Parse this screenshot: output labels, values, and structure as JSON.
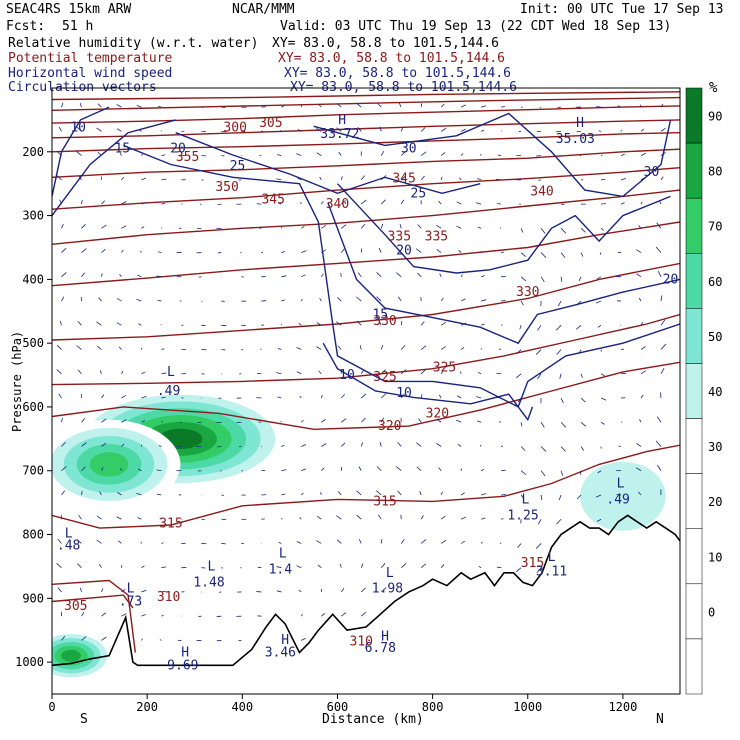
{
  "header": {
    "model": "SEAC4RS 15km ARW",
    "center": "NCAR/MMM",
    "init": "Init: 00 UTC Tue 17 Sep 13",
    "fcst_label": "Fcst:",
    "fcst_value": "51 h",
    "valid": "Valid: 03 UTC Thu 19 Sep 13 (22 CDT Wed 18 Sep 13)",
    "fields": [
      {
        "name": "Relative humidity (w.r.t. water)",
        "xy": "XY=  83.0, 58.8 to 101.5,144.6",
        "color": "#000000"
      },
      {
        "name": "Potential temperature",
        "xy": "XY=  83.0, 58.8 to 101.5,144.6",
        "color": "#8b1a1a"
      },
      {
        "name": "Horizontal wind speed",
        "xy": "XY=  83.0, 58.8 to 101.5,144.6",
        "color": "#1a237e"
      },
      {
        "name": "Circulation vectors",
        "xy": "XY=  83.0, 58.8 to 101.5,144.6",
        "color": "#1a237e"
      }
    ]
  },
  "colorbar": {
    "unit": "%",
    "levels": [
      0,
      10,
      20,
      30,
      40,
      50,
      60,
      70,
      80,
      90
    ],
    "colors": [
      "#ffffff",
      "#ffffff",
      "#ffffff",
      "#ffffff",
      "#bff2ec",
      "#80e6d4",
      "#4dd9a6",
      "#33cc66",
      "#1aa640",
      "#0a7a28"
    ]
  },
  "colors": {
    "theta": "#8b1a1a",
    "wind": "#1a237e",
    "terrain": "#000000"
  },
  "chart_data": {
    "type": "cross-section",
    "xlabel": "Distance (km)",
    "ylabel": "Pressure (hPa)",
    "xlim": [
      0,
      1320
    ],
    "ylim": [
      1050,
      100
    ],
    "x_ticks": [
      0,
      200,
      400,
      600,
      800,
      1000,
      1200
    ],
    "y_ticks": [
      200,
      300,
      400,
      500,
      600,
      700,
      800,
      900,
      1000
    ],
    "left_end": "S",
    "right_end": "N",
    "terrain": [
      [
        0,
        1005
      ],
      [
        40,
        1002
      ],
      [
        80,
        995
      ],
      [
        120,
        990
      ],
      [
        155,
        930
      ],
      [
        170,
        1000
      ],
      [
        180,
        1005
      ],
      [
        220,
        1005
      ],
      [
        280,
        1005
      ],
      [
        340,
        1005
      ],
      [
        380,
        1005
      ],
      [
        420,
        980
      ],
      [
        450,
        945
      ],
      [
        470,
        925
      ],
      [
        490,
        940
      ],
      [
        520,
        985
      ],
      [
        540,
        970
      ],
      [
        560,
        950
      ],
      [
        590,
        925
      ],
      [
        620,
        950
      ],
      [
        660,
        945
      ],
      [
        690,
        925
      ],
      [
        720,
        905
      ],
      [
        750,
        890
      ],
      [
        780,
        880
      ],
      [
        800,
        870
      ],
      [
        830,
        880
      ],
      [
        860,
        860
      ],
      [
        880,
        870
      ],
      [
        910,
        860
      ],
      [
        930,
        880
      ],
      [
        950,
        860
      ],
      [
        970,
        860
      ],
      [
        990,
        875
      ],
      [
        1010,
        880
      ],
      [
        1030,
        860
      ],
      [
        1050,
        820
      ],
      [
        1070,
        800
      ],
      [
        1090,
        790
      ],
      [
        1110,
        780
      ],
      [
        1130,
        790
      ],
      [
        1150,
        790
      ],
      [
        1170,
        800
      ],
      [
        1190,
        780
      ],
      [
        1210,
        770
      ],
      [
        1230,
        780
      ],
      [
        1250,
        790
      ],
      [
        1270,
        780
      ],
      [
        1290,
        790
      ],
      [
        1310,
        800
      ],
      [
        1320,
        810
      ]
    ],
    "theta": [
      {
        "value": 300,
        "label_at": [
          370,
          162
        ]
      },
      {
        "value": 305,
        "label_at": [
          60,
          910
        ]
      },
      {
        "value": 310,
        "label_at": [
          240,
          900
        ]
      },
      {
        "value": 315,
        "label_at": [
          250,
          775
        ]
      },
      {
        "value": 320,
        "label_at": [
          690,
          625
        ]
      },
      {
        "value": 325,
        "label_at": [
          700,
          550
        ]
      },
      {
        "value": 330,
        "label_at": [
          700,
          468
        ]
      },
      {
        "value": 335,
        "label_at": [
          790,
          330
        ]
      },
      {
        "value": 340,
        "label_at": [
          1000,
          262
        ]
      },
      {
        "value": 345,
        "label_at": [
          740,
          240
        ]
      },
      {
        "value": 350,
        "label_at": [
          360,
          255
        ]
      },
      {
        "value": 355,
        "label_at": [
          290,
          208
        ]
      }
    ],
    "theta_labels": [
      {
        "t": "300",
        "x": 385,
        "p": 162
      },
      {
        "t": "305",
        "x": 460,
        "p": 155
      },
      {
        "t": "355",
        "x": 285,
        "p": 208
      },
      {
        "t": "350",
        "x": 368,
        "p": 255
      },
      {
        "t": "345",
        "x": 465,
        "p": 275
      },
      {
        "t": "345",
        "x": 740,
        "p": 242
      },
      {
        "t": "340",
        "x": 600,
        "p": 282
      },
      {
        "t": "340",
        "x": 1030,
        "p": 262
      },
      {
        "t": "335",
        "x": 730,
        "p": 333
      },
      {
        "t": "335",
        "x": 808,
        "p": 333
      },
      {
        "t": "330",
        "x": 1000,
        "p": 420
      },
      {
        "t": "330",
        "x": 700,
        "p": 465
      },
      {
        "t": "325",
        "x": 700,
        "p": 553
      },
      {
        "t": "325",
        "x": 825,
        "p": 538
      },
      {
        "t": "320",
        "x": 810,
        "p": 610
      },
      {
        "t": "320",
        "x": 710,
        "p": 630
      },
      {
        "t": "315",
        "x": 700,
        "p": 748
      },
      {
        "t": "315",
        "x": 250,
        "p": 783
      },
      {
        "t": "310",
        "x": 245,
        "p": 898
      },
      {
        "t": "310",
        "x": 650,
        "p": 968
      },
      {
        "t": "305",
        "x": 50,
        "p": 912
      },
      {
        "t": "315",
        "x": 1010,
        "p": 845
      }
    ],
    "wind_labels": [
      {
        "t": "10",
        "x": 55,
        "p": 162
      },
      {
        "t": "15",
        "x": 148,
        "p": 195
      },
      {
        "t": "20",
        "x": 265,
        "p": 195
      },
      {
        "t": "25",
        "x": 390,
        "p": 222
      },
      {
        "t": "30",
        "x": 750,
        "p": 195
      },
      {
        "t": "25",
        "x": 770,
        "p": 265
      },
      {
        "t": "20",
        "x": 740,
        "p": 355
      },
      {
        "t": "15",
        "x": 690,
        "p": 455
      },
      {
        "t": "10",
        "x": 620,
        "p": 550
      },
      {
        "t": "10",
        "x": 740,
        "p": 578
      },
      {
        "t": "30",
        "x": 1260,
        "p": 232
      },
      {
        "t": "20",
        "x": 1300,
        "p": 400
      }
    ],
    "hl_labels": [
      {
        "t": "H",
        "x": 610,
        "p": 150
      },
      {
        "t": "33.72",
        "x": 605,
        "p": 172
      },
      {
        "t": "H",
        "x": 1110,
        "p": 155
      },
      {
        "t": "35.03",
        "x": 1100,
        "p": 180
      },
      {
        "t": "L",
        "x": 250,
        "p": 545
      },
      {
        "t": ".49",
        "x": 245,
        "p": 575
      },
      {
        "t": "L",
        "x": 35,
        "p": 798
      },
      {
        "t": ".48",
        "x": 35,
        "p": 817
      },
      {
        "t": "L",
        "x": 995,
        "p": 745
      },
      {
        "t": "1.25",
        "x": 990,
        "p": 770
      },
      {
        "t": "L",
        "x": 1195,
        "p": 720
      },
      {
        "t": ".49",
        "x": 1190,
        "p": 745
      },
      {
        "t": "L",
        "x": 335,
        "p": 850
      },
      {
        "t": "1.48",
        "x": 330,
        "p": 875
      },
      {
        "t": "L",
        "x": 485,
        "p": 830
      },
      {
        "t": "1.4",
        "x": 480,
        "p": 855
      },
      {
        "t": "L",
        "x": 710,
        "p": 860
      },
      {
        "t": "1.98",
        "x": 705,
        "p": 885
      },
      {
        "t": "L",
        "x": 165,
        "p": 885
      },
      {
        "t": ".73",
        "x": 165,
        "p": 905
      },
      {
        "t": "L",
        "x": 1050,
        "p": 835
      },
      {
        "t": "3.11",
        "x": 1050,
        "p": 858
      },
      {
        "t": "H",
        "x": 280,
        "p": 985
      },
      {
        "t": "9.69",
        "x": 275,
        "p": 1005
      },
      {
        "t": "H",
        "x": 490,
        "p": 965
      },
      {
        "t": "3.46",
        "x": 480,
        "p": 985
      },
      {
        "t": "H",
        "x": 700,
        "p": 960
      },
      {
        "t": "6.78",
        "x": 690,
        "p": 978
      }
    ],
    "rh_moist_regions": [
      {
        "cx": 270,
        "p": 650,
        "rx": 230,
        "rp": 80,
        "level": 90
      },
      {
        "cx": 120,
        "p": 690,
        "rx": 150,
        "rp": 70,
        "level": 70
      },
      {
        "cx": 1200,
        "p": 740,
        "rx": 150,
        "rp": 90,
        "level": 40
      },
      {
        "cx": 1120,
        "p": 260,
        "rx": 60,
        "rp": 110,
        "level": 30
      },
      {
        "cx": 40,
        "p": 990,
        "rx": 90,
        "rp": 40,
        "level": 80
      }
    ]
  }
}
